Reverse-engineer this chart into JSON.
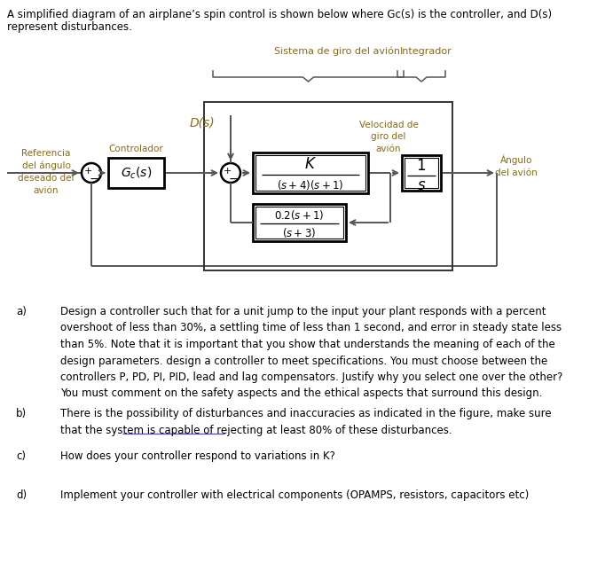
{
  "bg_color": "#ffffff",
  "black": "#000000",
  "orange": "#8B6914",
  "gray_line": "#555555",
  "header_line1": "A simplified diagram of an airplane’s spin control is shown below where Gc(s) is the controller, and D(s)",
  "header_line2": "represent disturbances.",
  "label_referencia": "Referencia\ndel ángulo\ndeseado del\navión",
  "label_controlador": "Controlador",
  "label_ds": "D(s)",
  "label_velocidad": "Velocidad de\ngiro del\navión",
  "label_angulo": "Ángulo\ndel avión",
  "label_sistema": "Sistema de giro del avión",
  "label_integrador": "Integrador",
  "qa_label": "a)",
  "qa_text": "Design a controller such that for a unit jump to the input your plant responds with a percent\novershoot of less than 30%, a settling time of less than 1 second, and error in steady state less\nthan 5%. Note that it is important that you show that understands the meaning of each of the\ndesign parameters. design a controller to meet specifications. You must choose between the\ncontrollers P, PD, PI, PID, lead and lag compensators. Justify why you select one over the other?\nYou must comment on the safety aspects and the ethical aspects that surround this design.",
  "qb_label": "b)",
  "qb_text": "There is the possibility of disturbances and inaccuracies as indicated in the figure, make sure\nthat the system is capable of rejecting at least 80% of these disturbances.",
  "qc_label": "c)",
  "qc_text": "How does your controller respond to variations in K?",
  "qd_label": "d)",
  "qd_text": "Implement your controller with electrical components (OPAMPS, resistors, capacitors etc)"
}
